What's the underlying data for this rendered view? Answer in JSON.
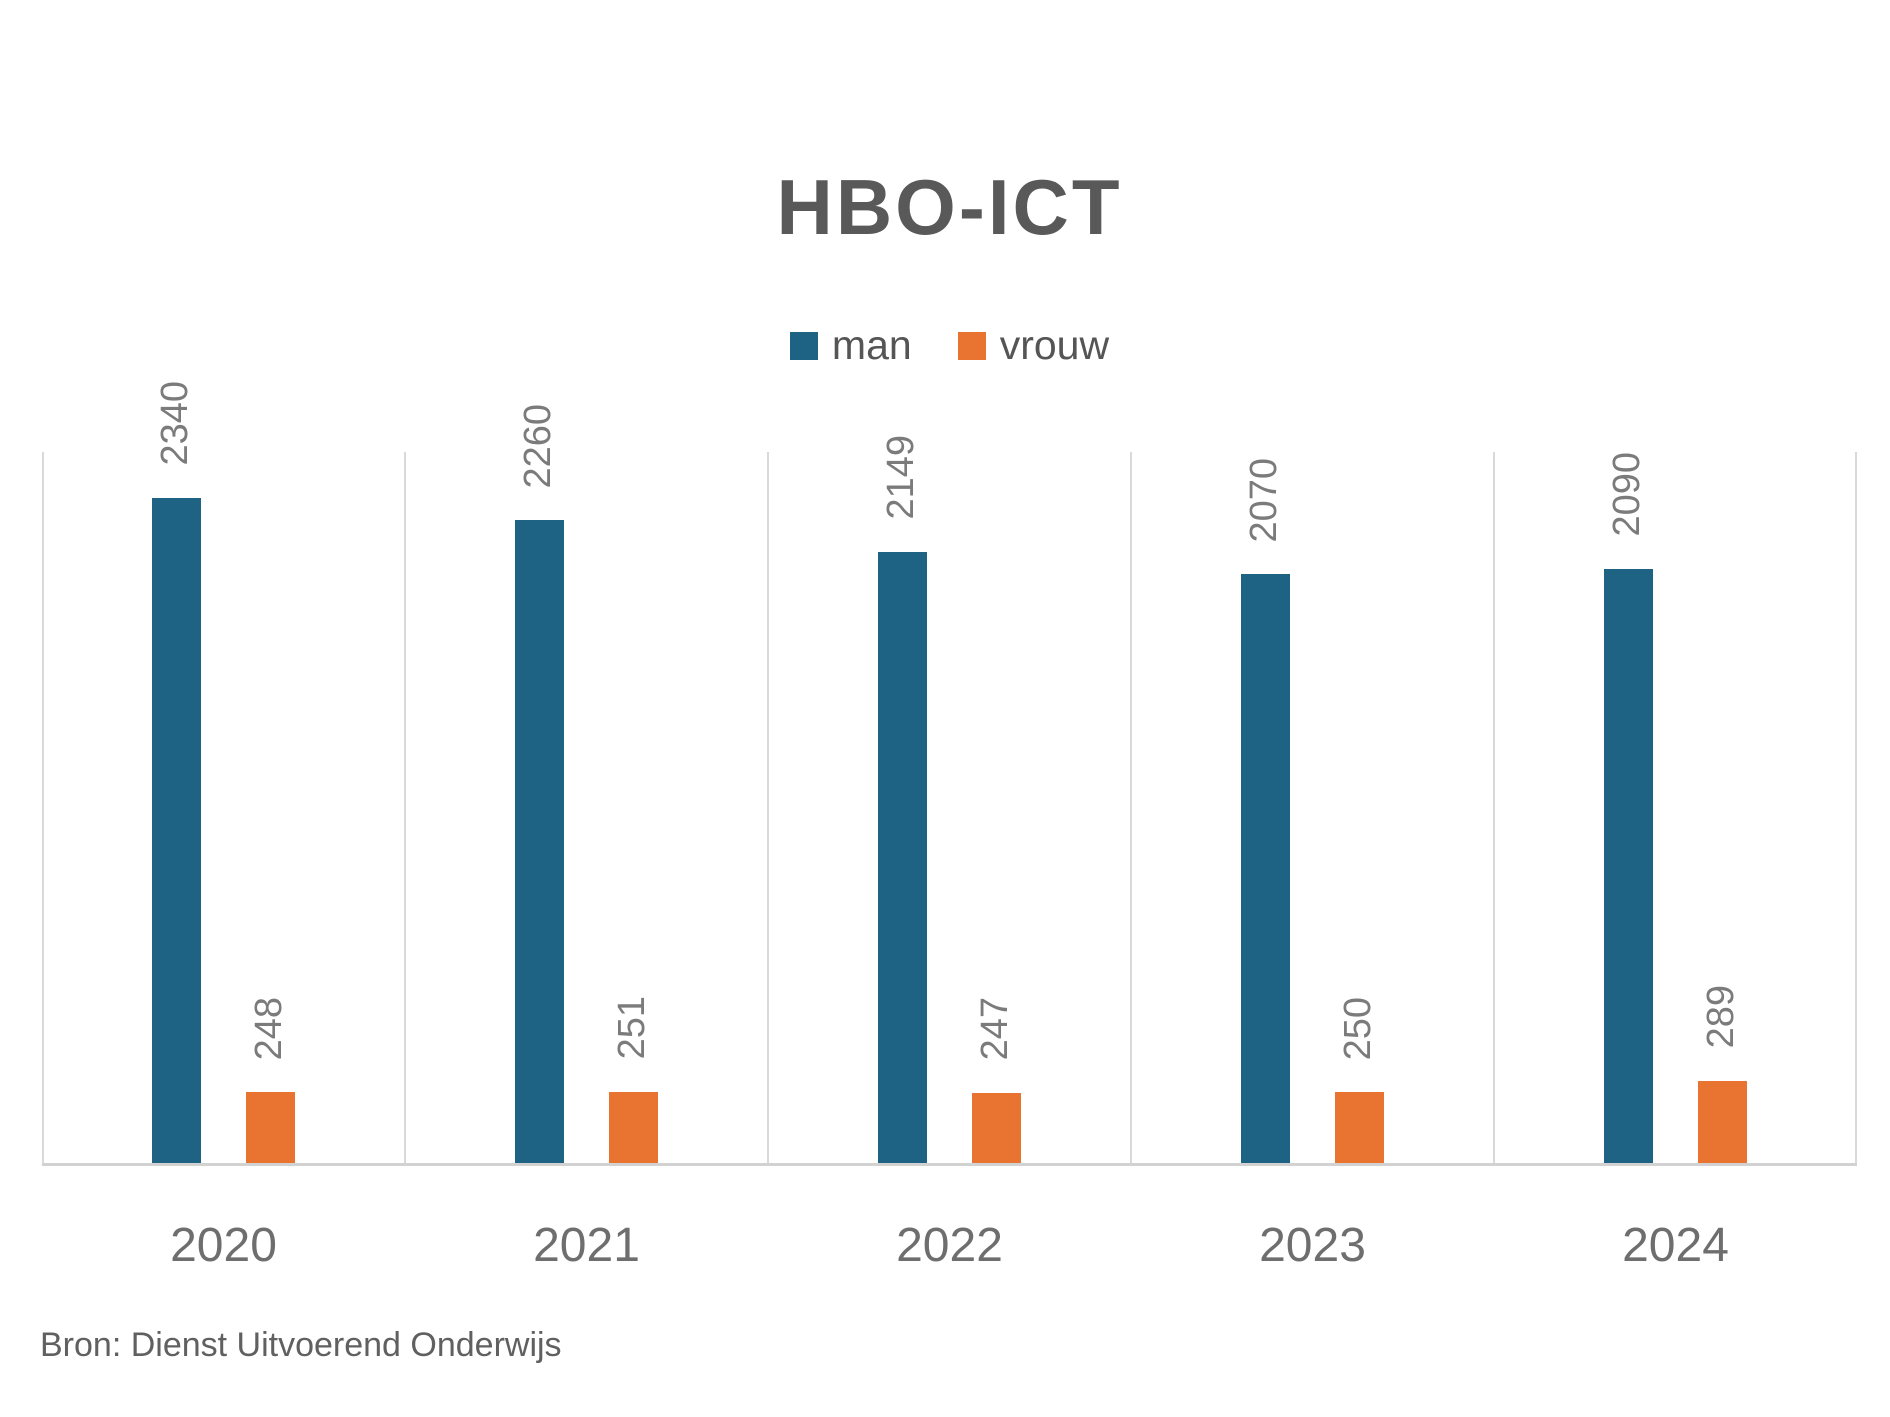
{
  "title": "HBO-ICT",
  "source_note": "Bron: Dienst Uitvoerend Onderwijs",
  "legend": {
    "items": [
      {
        "label": "man",
        "color": "#1e6384"
      },
      {
        "label": "vrouw",
        "color": "#e97331"
      }
    ]
  },
  "colors": {
    "man_bar": "#1e6384",
    "vrouw_bar": "#e97331",
    "gridline": "#d9d9d9",
    "axis_line": "#d2d2d2",
    "title_text": "#595959",
    "value_label_text": "#7b7b7b",
    "axis_label_text": "#6e6e6e"
  },
  "chart_data": {
    "type": "bar",
    "title": "HBO-ICT",
    "categories": [
      "2020",
      "2021",
      "2022",
      "2023",
      "2024"
    ],
    "series": [
      {
        "name": "man",
        "color": "#1e6384",
        "values": [
          2340,
          2260,
          2149,
          2070,
          2090
        ]
      },
      {
        "name": "vrouw",
        "color": "#e97331",
        "values": [
          248,
          251,
          247,
          250,
          289
        ]
      }
    ],
    "xlabel": "",
    "ylabel": "",
    "ylim": [
      0,
      2500
    ],
    "y_axis_visible": false,
    "grid": "vertical category-boundary gridlines only",
    "legend_position": "top-center",
    "data_labels": "values shown rotated 90deg above each bar",
    "source": "Bron: Dienst Uitvoerend Onderwijs"
  }
}
